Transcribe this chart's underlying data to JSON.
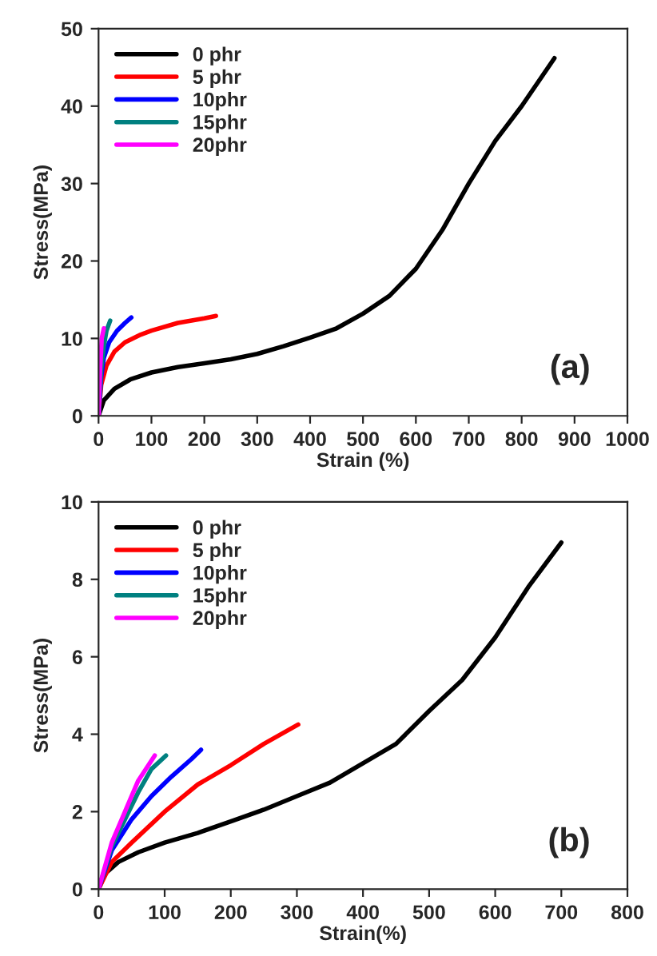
{
  "chart_data": [
    {
      "type": "line",
      "xlabel": "Strain (%)",
      "ylabel": "Stress(MPa)",
      "annotations": [
        "(a)"
      ],
      "xlim": [
        0,
        1000
      ],
      "ylim": [
        0,
        50
      ],
      "xticks": [
        0,
        100,
        200,
        300,
        400,
        500,
        600,
        700,
        800,
        900,
        1000
      ],
      "yticks": [
        0,
        10,
        20,
        30,
        40,
        50
      ],
      "legend": "top left",
      "grid": false,
      "series": [
        {
          "name": "0 phr",
          "color": "#000000",
          "x": [
            0,
            10,
            30,
            60,
            100,
            150,
            200,
            250,
            300,
            350,
            400,
            450,
            500,
            550,
            600,
            650,
            700,
            750,
            800,
            830,
            862
          ],
          "values": [
            0,
            2,
            3.5,
            4.7,
            5.6,
            6.3,
            6.8,
            7.3,
            8.0,
            9.0,
            10.1,
            11.3,
            13.2,
            15.5,
            19,
            24,
            30,
            35.5,
            40,
            43,
            46.2
          ]
        },
        {
          "name": "5 phr",
          "color": "#ff0000",
          "x": [
            0,
            5,
            15,
            30,
            50,
            80,
            100,
            150,
            200,
            222
          ],
          "values": [
            0,
            4,
            6.5,
            8.3,
            9.5,
            10.5,
            11,
            12,
            12.6,
            12.9
          ]
        },
        {
          "name": "10phr",
          "color": "#0000ff",
          "x": [
            0,
            5,
            10,
            20,
            35,
            50,
            62
          ],
          "values": [
            0,
            5,
            7.5,
            9.5,
            11,
            12,
            12.7
          ]
        },
        {
          "name": "15phr",
          "color": "#008080",
          "x": [
            0,
            5,
            10,
            15,
            22
          ],
          "values": [
            0,
            6,
            9,
            11,
            12.3
          ]
        },
        {
          "name": "20phr",
          "color": "#ff00ff",
          "x": [
            0,
            3,
            6,
            10
          ],
          "values": [
            0,
            6,
            10,
            11.3
          ]
        }
      ]
    },
    {
      "type": "line",
      "xlabel": "Strain(%)",
      "ylabel": "Stress(MPa)",
      "annotations": [
        "(b)"
      ],
      "xlim": [
        0,
        800
      ],
      "ylim": [
        0,
        10
      ],
      "xticks": [
        0,
        100,
        200,
        300,
        400,
        500,
        600,
        700,
        800
      ],
      "yticks": [
        0,
        2,
        4,
        6,
        8,
        10
      ],
      "legend": "top left",
      "grid": false,
      "series": [
        {
          "name": "0 phr",
          "color": "#000000",
          "x": [
            0,
            10,
            30,
            60,
            100,
            150,
            200,
            250,
            300,
            350,
            400,
            450,
            500,
            550,
            600,
            650,
            700
          ],
          "values": [
            0,
            0.4,
            0.7,
            0.95,
            1.2,
            1.45,
            1.75,
            2.05,
            2.4,
            2.75,
            3.25,
            3.75,
            4.6,
            5.4,
            6.5,
            7.8,
            8.95
          ]
        },
        {
          "name": "5 phr",
          "color": "#ff0000",
          "x": [
            0,
            20,
            50,
            100,
            150,
            200,
            250,
            302
          ],
          "values": [
            0,
            0.7,
            1.2,
            2.0,
            2.7,
            3.2,
            3.75,
            4.25
          ]
        },
        {
          "name": "10phr",
          "color": "#0000ff",
          "x": [
            0,
            20,
            50,
            80,
            110,
            140,
            155
          ],
          "values": [
            0,
            1.0,
            1.8,
            2.4,
            2.9,
            3.35,
            3.6
          ]
        },
        {
          "name": "15phr",
          "color": "#008080",
          "x": [
            0,
            20,
            40,
            60,
            80,
            102
          ],
          "values": [
            0,
            1.1,
            1.8,
            2.5,
            3.1,
            3.45
          ]
        },
        {
          "name": "20phr",
          "color": "#ff00ff",
          "x": [
            0,
            20,
            40,
            60,
            85
          ],
          "values": [
            0,
            1.2,
            2.0,
            2.8,
            3.45
          ]
        }
      ]
    }
  ]
}
